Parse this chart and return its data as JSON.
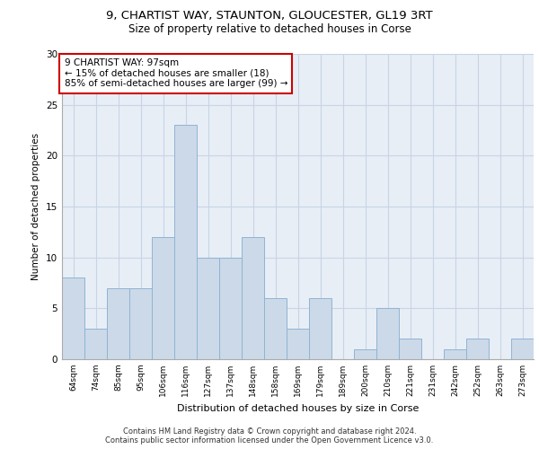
{
  "title_line1": "9, CHARTIST WAY, STAUNTON, GLOUCESTER, GL19 3RT",
  "title_line2": "Size of property relative to detached houses in Corse",
  "xlabel": "Distribution of detached houses by size in Corse",
  "ylabel": "Number of detached properties",
  "bar_labels": [
    "64sqm",
    "74sqm",
    "85sqm",
    "95sqm",
    "106sqm",
    "116sqm",
    "127sqm",
    "137sqm",
    "148sqm",
    "158sqm",
    "169sqm",
    "179sqm",
    "189sqm",
    "200sqm",
    "210sqm",
    "221sqm",
    "231sqm",
    "242sqm",
    "252sqm",
    "263sqm",
    "273sqm"
  ],
  "bar_values": [
    8,
    3,
    7,
    7,
    12,
    23,
    10,
    10,
    12,
    6,
    3,
    6,
    0,
    1,
    5,
    2,
    0,
    1,
    2,
    0,
    2
  ],
  "bar_color": "#ccd9e8",
  "bar_edge_color": "#8fb4d4",
  "annotation_text": "9 CHARTIST WAY: 97sqm\n← 15% of detached houses are smaller (18)\n85% of semi-detached houses are larger (99) →",
  "annotation_box_color": "#ffffff",
  "annotation_box_edge_color": "#cc0000",
  "ylim": [
    0,
    30
  ],
  "yticks": [
    0,
    5,
    10,
    15,
    20,
    25,
    30
  ],
  "grid_color": "#c8d4e4",
  "background_color": "#e8eef6",
  "footer_line1": "Contains HM Land Registry data © Crown copyright and database right 2024.",
  "footer_line2": "Contains public sector information licensed under the Open Government Licence v3.0."
}
